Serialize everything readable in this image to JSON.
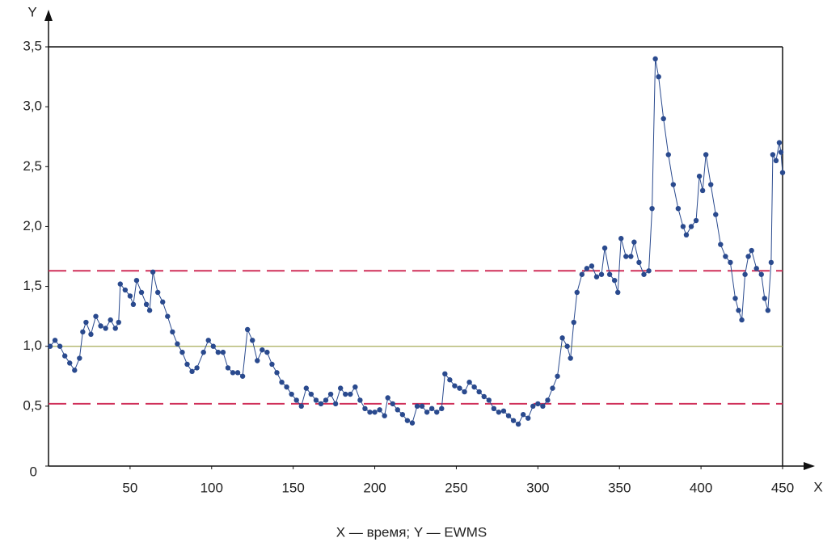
{
  "chart_data": {
    "type": "line",
    "x_label": "X",
    "y_label": "Y",
    "caption": "X — время; Y — EWMS",
    "xlim": [
      0,
      450
    ],
    "ylim": [
      0,
      3.5
    ],
    "xticks": [
      50,
      100,
      150,
      200,
      250,
      300,
      350,
      400,
      450
    ],
    "yticks": [
      0,
      {
        "value": 0.5,
        "label": "0,5"
      },
      {
        "value": 1,
        "label": "1,0"
      },
      {
        "value": 1.5,
        "label": "1,5"
      },
      {
        "value": 2,
        "label": "2,0"
      },
      {
        "value": 2.5,
        "label": "2,5"
      },
      {
        "value": 3,
        "label": "3,0"
      },
      {
        "value": 3.5,
        "label": "3,5"
      }
    ],
    "hlines": [
      {
        "value": 1.0,
        "color": "#a8ad5a",
        "dashed": false
      },
      {
        "value": 1.63,
        "color": "#d0305a",
        "dashed": true
      },
      {
        "value": 0.52,
        "color": "#d0305a",
        "dashed": true
      }
    ],
    "series": [
      {
        "color": "#2a4a8e",
        "x": [
          1,
          4,
          7,
          10,
          13,
          16,
          19,
          21,
          23,
          26,
          29,
          32,
          35,
          38,
          41,
          43,
          44,
          47,
          50,
          52,
          54,
          57,
          60,
          62,
          64,
          67,
          70,
          73,
          76,
          79,
          82,
          85,
          88,
          91,
          95,
          98,
          101,
          104,
          107,
          110,
          113,
          116,
          119,
          122,
          125,
          128,
          131,
          134,
          137,
          140,
          143,
          146,
          149,
          152,
          155,
          158,
          161,
          164,
          167,
          170,
          173,
          176,
          179,
          182,
          185,
          188,
          191,
          194,
          197,
          200,
          203,
          206,
          208,
          211,
          214,
          217,
          220,
          223,
          226,
          229,
          232,
          235,
          238,
          241,
          243,
          246,
          249,
          252,
          255,
          258,
          261,
          264,
          267,
          270,
          273,
          276,
          279,
          282,
          285,
          288,
          291,
          294,
          297,
          300,
          303,
          306,
          309,
          312,
          315,
          318,
          320,
          322,
          324,
          327,
          330,
          333,
          336,
          339,
          341,
          344,
          347,
          349,
          351,
          354,
          357,
          359,
          362,
          365,
          368,
          370,
          372,
          374,
          377,
          380,
          383,
          386,
          389,
          391,
          394,
          397,
          399,
          401,
          403,
          406,
          409,
          412,
          415,
          418,
          421,
          423,
          425,
          427,
          429,
          431,
          434,
          437,
          439,
          441,
          443,
          444,
          446,
          448,
          449,
          450
        ],
        "values": [
          1.0,
          1.05,
          1.0,
          0.92,
          0.86,
          0.8,
          0.9,
          1.12,
          1.2,
          1.1,
          1.25,
          1.17,
          1.15,
          1.22,
          1.15,
          1.2,
          1.52,
          1.47,
          1.42,
          1.35,
          1.55,
          1.45,
          1.35,
          1.3,
          1.62,
          1.45,
          1.37,
          1.25,
          1.12,
          1.02,
          0.95,
          0.85,
          0.79,
          0.82,
          0.95,
          1.05,
          1.0,
          0.95,
          0.95,
          0.82,
          0.78,
          0.78,
          0.75,
          1.14,
          1.05,
          0.88,
          0.97,
          0.95,
          0.85,
          0.78,
          0.7,
          0.66,
          0.6,
          0.55,
          0.5,
          0.65,
          0.6,
          0.55,
          0.52,
          0.55,
          0.6,
          0.52,
          0.65,
          0.6,
          0.6,
          0.66,
          0.55,
          0.48,
          0.45,
          0.45,
          0.47,
          0.42,
          0.57,
          0.52,
          0.47,
          0.43,
          0.38,
          0.36,
          0.5,
          0.5,
          0.45,
          0.48,
          0.45,
          0.48,
          0.77,
          0.72,
          0.67,
          0.65,
          0.62,
          0.7,
          0.66,
          0.62,
          0.58,
          0.55,
          0.48,
          0.45,
          0.46,
          0.42,
          0.38,
          0.35,
          0.43,
          0.4,
          0.5,
          0.52,
          0.5,
          0.55,
          0.65,
          0.75,
          1.07,
          1.0,
          0.9,
          1.2,
          1.45,
          1.6,
          1.65,
          1.67,
          1.58,
          1.6,
          1.82,
          1.6,
          1.55,
          1.45,
          1.9,
          1.75,
          1.75,
          1.87,
          1.7,
          1.6,
          1.63,
          2.15,
          3.4,
          3.25,
          2.9,
          2.6,
          2.35,
          2.15,
          2.0,
          1.93,
          2.0,
          2.05,
          2.42,
          2.3,
          2.6,
          2.35,
          2.1,
          1.85,
          1.75,
          1.7,
          1.4,
          1.3,
          1.22,
          1.6,
          1.75,
          1.8,
          1.65,
          1.6,
          1.4,
          1.3,
          1.7,
          2.6,
          2.55,
          2.7,
          2.62,
          2.45
        ]
      }
    ]
  }
}
